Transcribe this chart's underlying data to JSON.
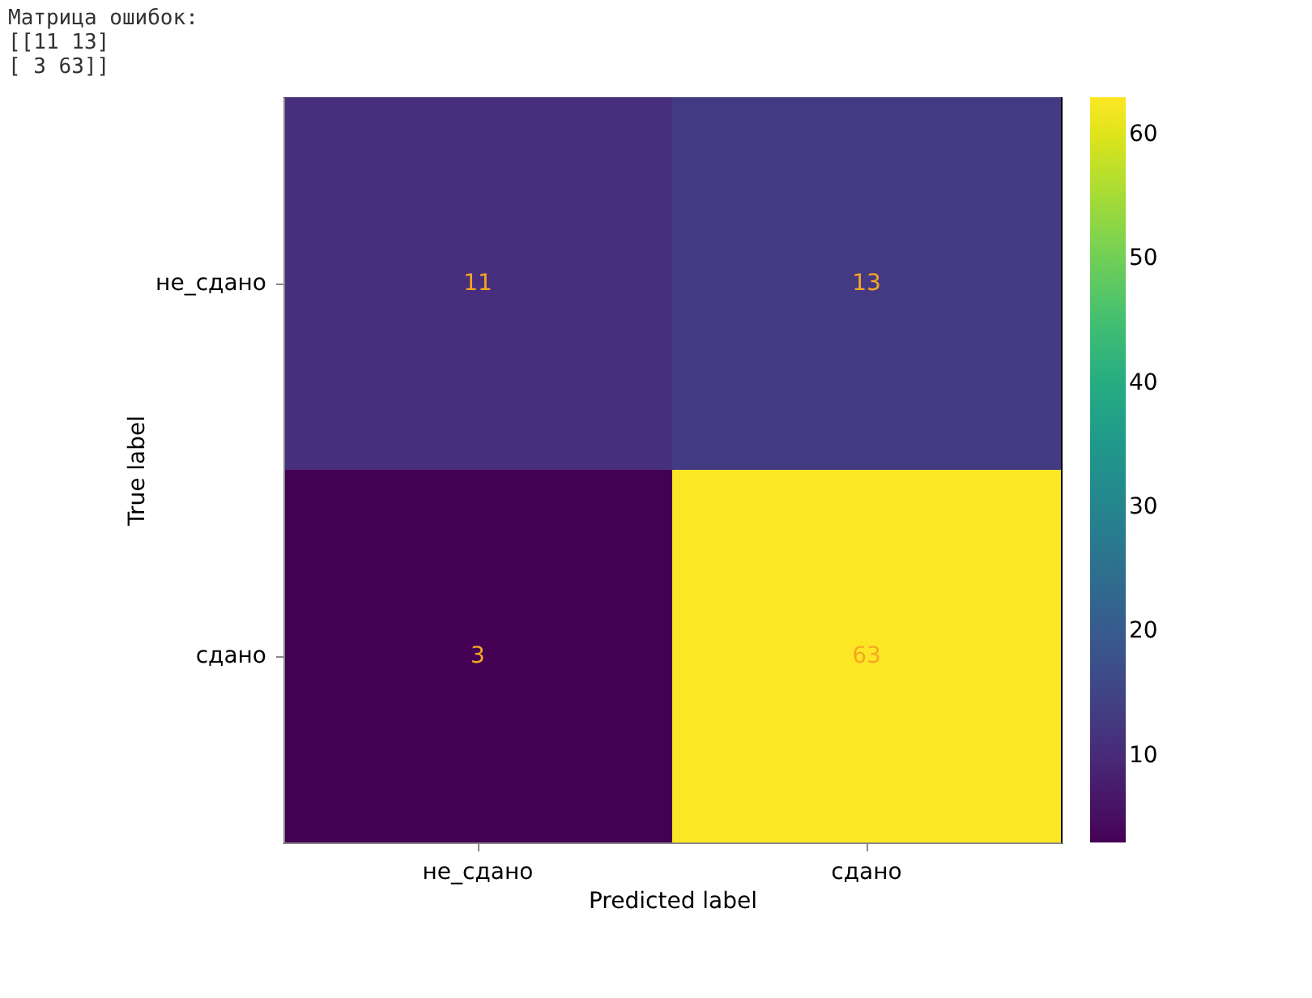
{
  "chart_data": {
    "type": "heatmap",
    "xlabel": "Predicted label",
    "ylabel": "True label",
    "categories": [
      "не_сдано",
      "сдано"
    ],
    "y_categories": [
      "не_сдано",
      "сдано"
    ],
    "cells": [
      [
        11,
        13
      ],
      [
        3,
        63
      ]
    ],
    "data_labels": true,
    "clim": [
      3,
      63
    ],
    "cticks": [
      10,
      20,
      30,
      40,
      50,
      60
    ],
    "annotations": [
      "Матрица ошибок:",
      "[[11 13]",
      " [ 3 63]]"
    ],
    "grid": false
  }
}
